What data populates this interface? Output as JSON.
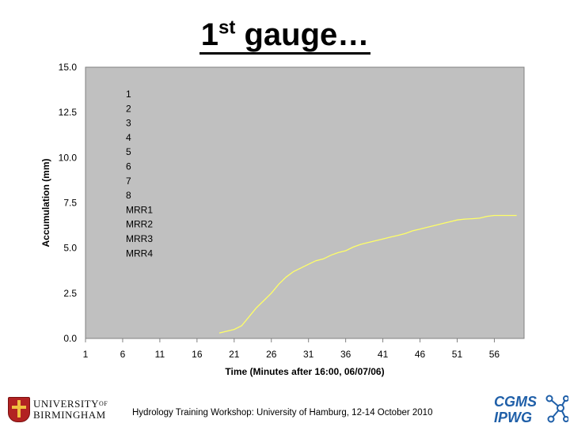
{
  "slide": {
    "title_main": "1",
    "title_sup": "st",
    "title_rest": " gauge…",
    "footer": "Hydrology Training Workshop: University of Hamburg, 12-14 October 2010",
    "logo_left_line1": "UNIVERSITY",
    "logo_left_of": "OF",
    "logo_left_line2": "BIRMINGHAM",
    "logo_right_line1": "CGMS",
    "logo_right_line2": "IPWG"
  },
  "colors": {
    "plot_bg": "#c0c0c0",
    "series_line": "#ffff66",
    "axis": "#808080"
  },
  "chart_data": {
    "type": "line",
    "title": "",
    "xlabel": "Time (Minutes after 16:00, 06/07/06)",
    "ylabel": "Accumulation (mm)",
    "xlim": [
      1,
      60
    ],
    "ylim": [
      0,
      15
    ],
    "x_ticks": [
      "1",
      "6",
      "11",
      "16",
      "21",
      "26",
      "31",
      "36",
      "41",
      "46",
      "51",
      "56"
    ],
    "y_ticks": [
      "15.0",
      "12.5",
      "10.0",
      "7.5",
      "5.0",
      "2.5",
      "0.0"
    ],
    "legend_position": "top-left",
    "legend": [
      "1",
      "2",
      "3",
      "4",
      "5",
      "6",
      "7",
      "8",
      "MRR1",
      "MRR2",
      "MRR3",
      "MRR4"
    ],
    "series": [
      {
        "name": "1",
        "x": [
          19,
          20,
          21,
          22,
          23,
          24,
          25,
          26,
          27,
          28,
          29,
          30,
          31,
          32,
          33,
          34,
          35,
          36,
          37,
          38,
          39,
          40,
          41,
          42,
          43,
          44,
          45,
          46,
          47,
          48,
          49,
          50,
          51,
          52,
          53,
          54,
          55,
          56,
          57,
          58,
          59
        ],
        "y": [
          0.3,
          0.4,
          0.5,
          0.7,
          1.2,
          1.7,
          2.1,
          2.5,
          3.0,
          3.4,
          3.7,
          3.9,
          4.1,
          4.3,
          4.4,
          4.6,
          4.75,
          4.85,
          5.05,
          5.2,
          5.3,
          5.4,
          5.5,
          5.6,
          5.7,
          5.8,
          5.95,
          6.05,
          6.15,
          6.25,
          6.35,
          6.45,
          6.55,
          6.6,
          6.62,
          6.65,
          6.75,
          6.8,
          6.8,
          6.8,
          6.8
        ]
      }
    ]
  }
}
